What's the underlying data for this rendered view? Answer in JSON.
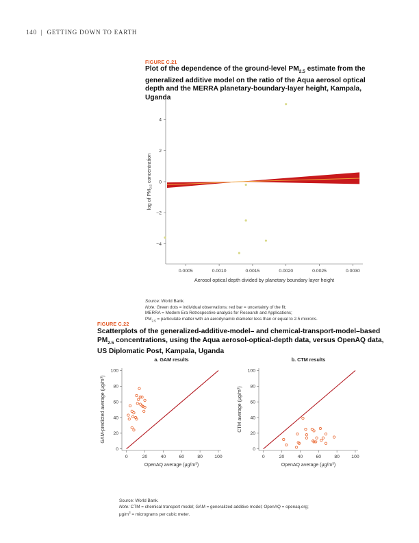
{
  "header": {
    "page_number": "140",
    "separator": "|",
    "running_title": "GETTING DOWN TO EARTH"
  },
  "figure_c21": {
    "label": "FIGURE C.21",
    "title_line1_a": "Plot of the dependence of the ground-level PM",
    "title_line1_sub": "2.5",
    "title_line1_b": " estimate from the",
    "title_line2": "generalized additive model on the ratio of the Aqua aerosol optical",
    "title_line3": "depth and the MERRA planetary-boundary-layer height, Kampala,",
    "title_line4": "Uganda",
    "source_label": "Source:",
    "source_text": " World Bank.",
    "note_label": "Note:",
    "note_line1": " Green dots = individual observations; red bar = uncertainty of the fit;",
    "note_line2": "MERRA = Modern Era Retrospective-analysis for Research and Applications;",
    "note_line3_a": "PM",
    "note_line3_sub": "2.5",
    "note_line3_b": " = particulate matter with an aerodynamic diameter less than or equal to 2.5 microns.",
    "colors": {
      "band": "#c8191c",
      "line": "#f0a23a",
      "dots": "#d9d98a"
    },
    "chart_data": {
      "type": "line",
      "xlabel": "Aerosol optical depth divided by planetary boundary layer height",
      "ylabel_a": "log of PM",
      "ylabel_sub": "2.5",
      "ylabel_b": " concentration",
      "xlim": [
        0.0002,
        0.00315
      ],
      "ylim": [
        -5.3,
        5.3
      ],
      "x_ticks": [
        0.0005,
        0.001,
        0.0015,
        0.002,
        0.0025,
        0.003
      ],
      "x_tick_labels": [
        "0.0005",
        "0.0010",
        "0.0015",
        "0.0020",
        "0.0025",
        "0.0030"
      ],
      "y_ticks": [
        -4,
        -2,
        0,
        2,
        4
      ],
      "y_tick_labels": [
        "−4",
        "−2",
        "0",
        "2",
        "4"
      ],
      "fit": {
        "x": [
          0.00022,
          0.0013,
          0.0031
        ],
        "center": [
          -0.2,
          0.0,
          0.22
        ],
        "upper": [
          -0.05,
          0.0,
          0.6
        ],
        "lower": [
          -0.4,
          0.0,
          -0.15
        ]
      },
      "points": [
        {
          "x": 0.00019,
          "y": -3.6
        },
        {
          "x": 0.0013,
          "y": -4.6
        },
        {
          "x": 0.0014,
          "y": -0.2
        },
        {
          "x": 0.0014,
          "y": -2.5
        },
        {
          "x": 0.0017,
          "y": -3.8
        },
        {
          "x": 0.002,
          "y": 5.0
        }
      ]
    }
  },
  "figure_c22": {
    "label": "FIGURE C.22",
    "title_line1": "Scatterplots of the generalized-additive-model– and chemical-transport-model–based",
    "title_line2_a": "PM",
    "title_line2_sub": "2.5",
    "title_line2_b": " concentrations, using the Aqua aerosol-optical-depth data, versus OpenAQ data,",
    "title_line3": "US Diplomatic Post, Kampala, Uganda",
    "source_text": "Source: World Bank.",
    "note_label": "Note:",
    "note_line1": " CTM = chemical transport model; GAM = generalized additive model; OpenAQ = openaq.org;",
    "note_line2_a": "μg/m",
    "note_line2_sup": "3",
    "note_line2_b": " = micrograms per cubic meter.",
    "colors": {
      "dots": "#e8622a",
      "line": "#b51d24"
    },
    "chart_data": [
      {
        "type": "scatter",
        "title": "a. GAM results",
        "xlabel_a": "OpenAQ average (μg/m",
        "xlabel_sup": "3",
        "xlabel_b": ")",
        "ylabel_a": "GAM-predicted average (μg/m",
        "ylabel_sup": "3",
        "ylabel_b": ")",
        "xlim": [
          -5,
          103
        ],
        "ylim": [
          -2,
          103
        ],
        "ticks": [
          0,
          20,
          40,
          60,
          80,
          100
        ],
        "points": [
          {
            "x": 14,
            "y": 77
          },
          {
            "x": 11,
            "y": 68
          },
          {
            "x": 15,
            "y": 66
          },
          {
            "x": 17,
            "y": 66
          },
          {
            "x": 13,
            "y": 63
          },
          {
            "x": 20,
            "y": 62
          },
          {
            "x": 12,
            "y": 58
          },
          {
            "x": 15,
            "y": 57
          },
          {
            "x": 17,
            "y": 55
          },
          {
            "x": 18,
            "y": 54
          },
          {
            "x": 20,
            "y": 53
          },
          {
            "x": 4,
            "y": 55
          },
          {
            "x": 6,
            "y": 48
          },
          {
            "x": 8,
            "y": 46
          },
          {
            "x": 19,
            "y": 48
          },
          {
            "x": 2,
            "y": 43
          },
          {
            "x": 7,
            "y": 41
          },
          {
            "x": 10,
            "y": 40
          },
          {
            "x": 3,
            "y": 38
          },
          {
            "x": 11,
            "y": 38
          },
          {
            "x": 6,
            "y": 27
          },
          {
            "x": 8,
            "y": 24
          }
        ]
      },
      {
        "type": "scatter",
        "title": "b. CTM results",
        "xlabel_a": "OpenAQ average (μg/m",
        "xlabel_sup": "3",
        "xlabel_b": ")",
        "ylabel_a": "CTM average (μg/m",
        "ylabel_sup": "3",
        "ylabel_b": ")",
        "xlim": [
          -5,
          103
        ],
        "ylim": [
          -2,
          103
        ],
        "ticks": [
          0,
          20,
          40,
          60,
          80,
          100
        ],
        "points": [
          {
            "x": 43,
            "y": 39
          },
          {
            "x": 46,
            "y": 25
          },
          {
            "x": 53,
            "y": 25
          },
          {
            "x": 55,
            "y": 23
          },
          {
            "x": 62,
            "y": 26
          },
          {
            "x": 37,
            "y": 19
          },
          {
            "x": 47,
            "y": 18
          },
          {
            "x": 68,
            "y": 19
          },
          {
            "x": 77,
            "y": 15
          },
          {
            "x": 47,
            "y": 14
          },
          {
            "x": 58,
            "y": 14
          },
          {
            "x": 65,
            "y": 14
          },
          {
            "x": 22,
            "y": 12
          },
          {
            "x": 63,
            "y": 11
          },
          {
            "x": 54,
            "y": 10
          },
          {
            "x": 55,
            "y": 9
          },
          {
            "x": 57,
            "y": 9
          },
          {
            "x": 38,
            "y": 8
          },
          {
            "x": 39,
            "y": 7
          },
          {
            "x": 68,
            "y": 7
          },
          {
            "x": 25,
            "y": 5
          },
          {
            "x": 36,
            "y": 2
          }
        ]
      }
    ]
  }
}
